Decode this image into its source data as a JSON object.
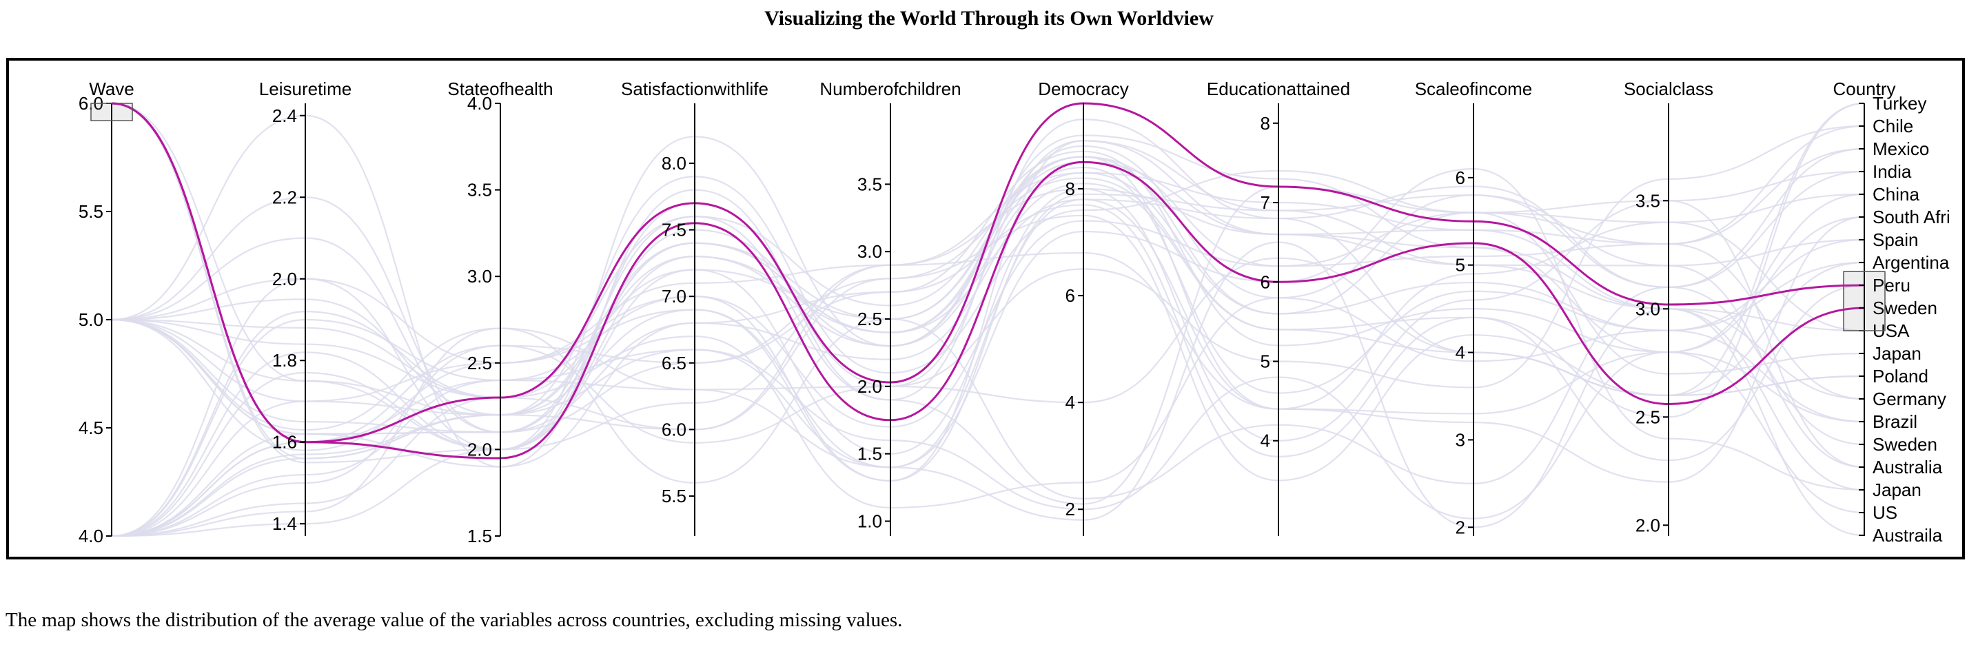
{
  "page": {
    "title": "Visualizing the World Through its Own Worldview",
    "caption": "The map shows the distribution of the average value of the variables across countries, excluding missing values."
  },
  "colors": {
    "background_line": "#dcdcec",
    "highlight_line": "#b5179e",
    "axis": "#000000"
  },
  "chart_data": {
    "type": "parallel-coordinates",
    "grid": false,
    "highlighted_series": [
      "Peru",
      "Sweden"
    ],
    "axes": [
      {
        "name": "Wave",
        "range": [
          4.0,
          6.0
        ],
        "ticks": [
          4.0,
          4.5,
          5.0,
          5.5,
          6.0
        ],
        "tick_labels": [
          "4.0",
          "4.5",
          "5.0",
          "5.5",
          "6.0"
        ],
        "brush": [
          5.92,
          6.0
        ]
      },
      {
        "name": "Leisuretime",
        "range": [
          1.37,
          2.43
        ],
        "ticks": [
          1.4,
          1.6,
          1.8,
          2.0,
          2.2,
          2.4
        ],
        "tick_labels": [
          "1.4",
          "1.6",
          "1.8",
          "2.0",
          "2.2",
          "2.4"
        ]
      },
      {
        "name": "Stateofhealth",
        "range": [
          1.5,
          4.0
        ],
        "ticks": [
          1.5,
          2.0,
          2.5,
          3.0,
          3.5,
          4.0
        ],
        "tick_labels": [
          "1.5",
          "2.0",
          "2.5",
          "3.0",
          "3.5",
          "4.0"
        ]
      },
      {
        "name": "Satisfactionwithlife",
        "range": [
          5.2,
          8.45
        ],
        "ticks": [
          5.5,
          6.0,
          6.5,
          7.0,
          7.5,
          8.0
        ],
        "tick_labels": [
          "5.5",
          "6.0",
          "6.5",
          "7.0",
          "7.5",
          "8.0"
        ]
      },
      {
        "name": "Numberofchildren",
        "range": [
          0.89,
          4.1
        ],
        "ticks": [
          1.0,
          1.5,
          2.0,
          2.5,
          3.0,
          3.5
        ],
        "tick_labels": [
          "1.0",
          "1.5",
          "2.0",
          "2.5",
          "3.0",
          "3.5"
        ]
      },
      {
        "name": "Democracy",
        "range": [
          1.5,
          9.6
        ],
        "ticks": [
          2,
          4,
          6,
          8
        ],
        "tick_labels": [
          "2",
          "4",
          "6",
          "8"
        ]
      },
      {
        "name": "Educationattained",
        "range": [
          2.8,
          8.25
        ],
        "ticks": [
          4,
          5,
          6,
          7,
          8
        ],
        "tick_labels": [
          "4",
          "5",
          "6",
          "7",
          "8"
        ]
      },
      {
        "name": "Scaleofincome",
        "range": [
          1.9,
          6.85
        ],
        "ticks": [
          2,
          3,
          4,
          5,
          6
        ],
        "tick_labels": [
          "2",
          "3",
          "4",
          "5",
          "6"
        ]
      },
      {
        "name": "Socialclass",
        "range": [
          1.95,
          3.95
        ],
        "ticks": [
          2.0,
          2.5,
          3.0,
          3.5
        ],
        "tick_labels": [
          "2.0",
          "2.5",
          "3.0",
          "3.5"
        ]
      },
      {
        "name": "Country",
        "categorical": true,
        "categories": [
          "Turkey",
          "Chile",
          "Mexico",
          "India",
          "China",
          "South Afri",
          "Spain",
          "Argentina",
          "Peru",
          "Sweden",
          "USA",
          "Japan",
          "Poland",
          "Germany",
          "Brazil",
          "Sweden",
          "Australia",
          "Japan",
          "US",
          "Austraila"
        ],
        "brush": [
          7.4,
          10.0
        ]
      }
    ],
    "series": [
      {
        "name": "Peru",
        "highlight": true,
        "values": [
          6.0,
          1.6,
          2.3,
          7.7,
          2.03,
          9.6,
          7.2,
          5.5,
          3.02,
          8
        ]
      },
      {
        "name": "Sweden",
        "highlight": true,
        "values": [
          6.0,
          1.6,
          1.95,
          7.55,
          1.75,
          8.5,
          6.0,
          5.25,
          2.56,
          9
        ]
      },
      {
        "name": "Turkey",
        "values": [
          4.0,
          1.5,
          2.6,
          6.5,
          2.8,
          7.5,
          3.5,
          4.2,
          2.6,
          0
        ]
      },
      {
        "name": "Chile",
        "values": [
          5.0,
          1.75,
          2.2,
          7.3,
          2.4,
          8.6,
          6.2,
          5.1,
          3.3,
          1
        ]
      },
      {
        "name": "Mexico",
        "values": [
          6.0,
          1.55,
          2.0,
          8.2,
          2.3,
          8.8,
          5.8,
          5.8,
          3.1,
          2
        ]
      },
      {
        "name": "India",
        "values": [
          4.0,
          1.45,
          2.3,
          6.0,
          2.9,
          8.0,
          4.0,
          4.6,
          3.5,
          3
        ]
      },
      {
        "name": "China",
        "values": [
          5.0,
          1.7,
          2.2,
          6.9,
          1.4,
          7.8,
          4.4,
          4.9,
          3.4,
          4
        ]
      },
      {
        "name": "South Afri",
        "values": [
          5.0,
          2.2,
          2.1,
          6.5,
          2.7,
          8.7,
          5.2,
          4.5,
          2.8,
          5
        ]
      },
      {
        "name": "Spain",
        "values": [
          4.0,
          1.9,
          2.4,
          7.0,
          1.3,
          8.9,
          6.6,
          5.0,
          3.2,
          6
        ]
      },
      {
        "name": "Argentina",
        "values": [
          5.0,
          1.62,
          2.1,
          7.6,
          2.6,
          8.6,
          5.6,
          4.8,
          2.9,
          7
        ]
      },
      {
        "name": "USA",
        "values": [
          4.0,
          2.0,
          2.0,
          7.5,
          2.3,
          8.3,
          7.0,
          5.4,
          3.0,
          10
        ]
      },
      {
        "name": "Japan",
        "values": [
          5.0,
          1.58,
          2.5,
          7.0,
          1.7,
          7.4,
          6.2,
          5.6,
          2.7,
          11
        ]
      },
      {
        "name": "Poland",
        "values": [
          5.0,
          1.65,
          2.1,
          6.8,
          2.2,
          8.1,
          5.4,
          4.0,
          2.6,
          12
        ]
      },
      {
        "name": "Germany",
        "values": [
          4.0,
          1.92,
          2.3,
          7.2,
          1.5,
          8.0,
          6.6,
          5.4,
          3.3,
          13
        ]
      },
      {
        "name": "Brazil",
        "values": [
          6.0,
          1.56,
          2.2,
          7.4,
          2.4,
          8.4,
          4.6,
          4.7,
          2.9,
          14
        ]
      },
      {
        "name": "Sweden",
        "values": [
          5.0,
          2.4,
          1.9,
          7.8,
          1.9,
          9.3,
          6.8,
          5.9,
          3.1,
          15
        ]
      },
      {
        "name": "Australia",
        "values": [
          4.0,
          1.82,
          2.0,
          7.7,
          2.0,
          8.9,
          6.9,
          5.8,
          3.2,
          16
        ]
      },
      {
        "name": "Japan",
        "values": [
          4.0,
          1.43,
          2.7,
          6.3,
          1.4,
          7.2,
          6.0,
          6.1,
          2.4,
          17
        ]
      },
      {
        "name": "US",
        "values": [
          5.0,
          2.1,
          2.1,
          7.4,
          2.5,
          8.5,
          6.6,
          5.2,
          2.8,
          18
        ]
      },
      {
        "name": "Austraila",
        "values": [
          6.0,
          1.75,
          2.0,
          7.3,
          2.3,
          9.0,
          7.3,
          5.2,
          3.0,
          19
        ]
      },
      {
        "name": "Turkey",
        "values": [
          5.0,
          1.62,
          1.9,
          6.8,
          2.7,
          7.7,
          3.8,
          4.4,
          2.5,
          0
        ]
      },
      {
        "name": "Chile",
        "values": [
          4.0,
          1.52,
          2.4,
          6.3,
          2.0,
          6.5,
          5.0,
          3.6,
          3.6,
          1
        ]
      },
      {
        "name": "Mexico",
        "values": [
          4.0,
          1.7,
          2.5,
          7.1,
          2.9,
          8.3,
          5.6,
          5.6,
          3.3,
          2
        ]
      },
      {
        "name": "India",
        "values": [
          5.0,
          1.63,
          2.7,
          5.6,
          2.5,
          2.2,
          4.2,
          2.5,
          3.1,
          3
        ]
      },
      {
        "name": "China",
        "values": [
          4.0,
          1.57,
          2.2,
          6.6,
          1.6,
          2.0,
          4.8,
          2.1,
          2.8,
          4
        ]
      },
      {
        "name": "South Afri",
        "values": [
          4.0,
          1.77,
          2.0,
          6.2,
          2.9,
          6.8,
          4.4,
          3.2,
          2.2,
          5
        ]
      },
      {
        "name": "Spain",
        "values": [
          5.0,
          1.84,
          2.3,
          6.7,
          1.1,
          2.5,
          5.8,
          3.9,
          2.9,
          6
        ]
      },
      {
        "name": "Argentina",
        "values": [
          4.0,
          1.62,
          2.1,
          7.4,
          2.4,
          7.8,
          6.8,
          4.0,
          2.6,
          7
        ]
      },
      {
        "name": "Peru",
        "values": [
          4.0,
          1.56,
          2.2,
          6.0,
          2.8,
          8.2,
          5.4,
          4.4,
          2.3,
          8
        ]
      },
      {
        "name": "USA",
        "values": [
          5.0,
          1.95,
          2.2,
          7.9,
          2.1,
          7.6,
          7.4,
          5.6,
          3.4,
          10
        ]
      },
      {
        "name": "Poland",
        "values": [
          4.0,
          1.6,
          2.6,
          5.9,
          2.0,
          4.0,
          6.3,
          4.0,
          2.6,
          12
        ]
      },
      {
        "name": "Germany",
        "values": [
          5.0,
          2.0,
          2.5,
          6.9,
          1.3,
          7.9,
          6.9,
          5.0,
          3.0,
          13
        ]
      },
      {
        "name": "Brazil",
        "values": [
          4.0,
          1.4,
          2.0,
          7.2,
          2.5,
          8.6,
          4.4,
          3.3,
          2.8,
          14
        ]
      },
      {
        "name": "Australia",
        "values": [
          5.0,
          1.88,
          2.3,
          7.6,
          1.9,
          2.1,
          7.2,
          5.6,
          3.5,
          16
        ]
      },
      {
        "name": "Japan",
        "values": [
          4.0,
          1.6,
          2.4,
          6.6,
          1.4,
          1.8,
          6.5,
          2.0,
          3.0,
          17
        ]
      }
    ]
  }
}
